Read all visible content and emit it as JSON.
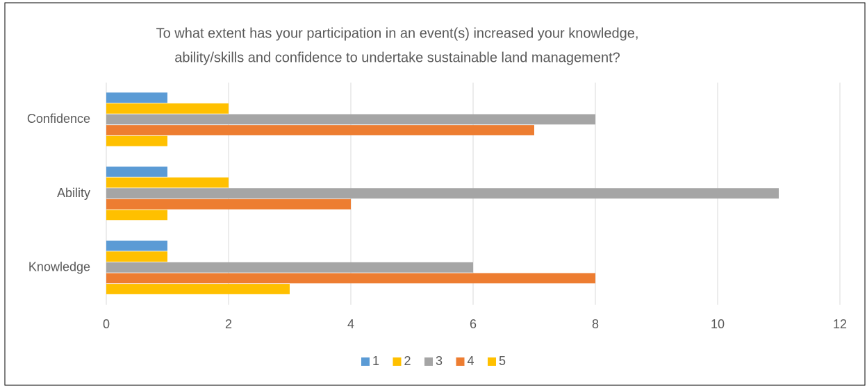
{
  "chart_data": {
    "type": "bar",
    "orientation": "horizontal",
    "title": [
      "To what extent has your participation in an event(s) increased your knowledge,",
      "ability/skills and confidence to undertake sustainable land management?"
    ],
    "categories": [
      "Knowledge",
      "Ability",
      "Confidence"
    ],
    "series": [
      {
        "name": "1",
        "color": "#5b9bd5",
        "values": [
          1,
          1,
          1
        ]
      },
      {
        "name": "2",
        "color": "#ffc000",
        "values": [
          1,
          2,
          2
        ]
      },
      {
        "name": "3",
        "color": "#a5a5a5",
        "values": [
          6,
          11,
          8
        ]
      },
      {
        "name": "4",
        "color": "#ed7d31",
        "values": [
          8,
          4,
          7
        ]
      },
      {
        "name": "5",
        "color": "#ffc000",
        "values": [
          3,
          1,
          1
        ]
      }
    ],
    "xlim": [
      0,
      12
    ],
    "xticks": [
      0,
      2,
      4,
      6,
      8,
      10,
      12
    ],
    "grid": true,
    "legend": "bottom"
  }
}
